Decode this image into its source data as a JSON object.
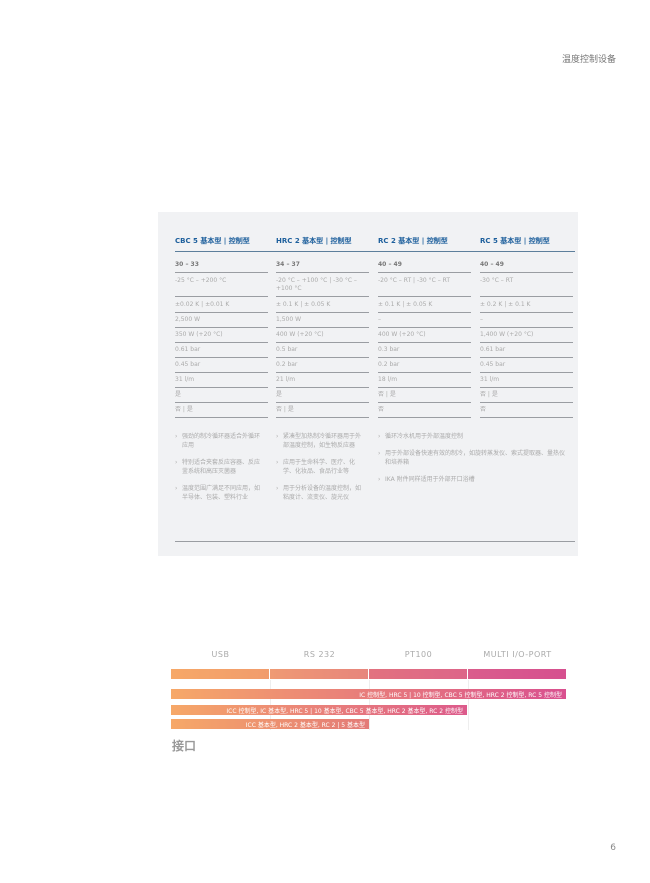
{
  "header": "温度控制设备",
  "page_number": "6",
  "table": {
    "columns": [
      {
        "title": "CBC 5 基本型 | 控制型",
        "rows": [
          "30 – 33",
          "-25 °C – +200 °C",
          "±0.02 K | ±0.01 K",
          "2,500 W",
          "350 W (+20 °C)",
          "0.61 bar",
          "0.45 bar",
          "31 l/m",
          "是",
          "否 | 是"
        ],
        "bullets": [
          "强劲的制冷循环器适合外循环应用",
          "特别适合夹套反应容器、反应釜系统和高压灭菌器",
          "温度范围广满足不同应用，如半导体、包装、塑料行业"
        ]
      },
      {
        "title": "HRC 2 基本型 | 控制型",
        "rows": [
          "34 – 37",
          "-20 °C – +100 °C | -30 °C – +100 °C",
          "± 0.1 K | ± 0.05 K",
          "1,500 W",
          "400 W (+20 °C)",
          "0.5 bar",
          "0.2 bar",
          "21 l/m",
          "是",
          "否 | 是"
        ],
        "bullets": [
          "紧凑型加热制冷循环器用于外部温度控制，如生物反应器",
          "应用于生命科学、医疗、化学、化妆品、食品行业等",
          "用于分析设备的温度控制，如粘度计、流变仪、旋光仪"
        ]
      },
      {
        "title": "RC 2 基本型 | 控制型",
        "rows": [
          "40 – 49",
          "-20 °C – RT | -30 °C – RT",
          "± 0.1 K | ± 0.05 K",
          "–",
          "400 W (+20 °C)",
          "0.3 bar",
          "0.2 bar",
          "18 l/m",
          "否 | 是",
          "否"
        ],
        "bullets": [
          "循环冷水机用于外部温度控制",
          "用于外部设备快速有效的制冷，如旋转蒸发仪、索式提取器、量热仪和培养箱",
          "IKA 附件同样适用于外部开口浴槽"
        ]
      },
      {
        "title": "RC 5 基本型 | 控制型",
        "rows": [
          "40 – 49",
          "-30 °C – RT",
          "± 0.2 K | ± 0.1 K",
          "–",
          "1,400 W (+20 °C)",
          "0.61 bar",
          "0.45 bar",
          "31 l/m",
          "否 | 是",
          "否"
        ],
        "bullets": []
      }
    ]
  },
  "interfaces": {
    "title": "接口",
    "labels": [
      "USB",
      "RS 232",
      "PT100",
      "MULTI I/O-PORT"
    ],
    "bars": [
      "IC 控制型, HRC 5 | 10 控制型, CBC 5 控制型, HRC 2 控制型, RC 5 控制型",
      "ICC 控制型, IC 基本型, HRC 5 | 10 基本型, CBC 5 基本型, HRC 2 基本型, RC 2 控制型",
      "ICC 基本型, HRC 2 基本型, RC 2 | 5 基本型"
    ],
    "gradient": [
      "#f6a868",
      "#d9508f"
    ]
  }
}
